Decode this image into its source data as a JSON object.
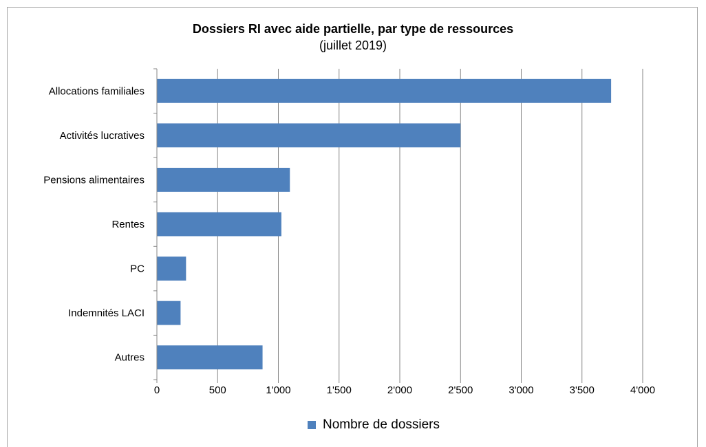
{
  "chart_data": {
    "type": "bar",
    "orientation": "horizontal",
    "title": "Dossiers RI avec aide partielle,  par type de ressources",
    "subtitle": "(juillet 2019)",
    "categories": [
      "Allocations familiales",
      "Activités lucratives",
      "Pensions alimentaires",
      "Rentes",
      "PC",
      "Indemnités LACI",
      "Autres"
    ],
    "series": [
      {
        "name": "Nombre de dossiers",
        "values": [
          3740,
          2500,
          1095,
          1025,
          240,
          195,
          870
        ],
        "color": "#4f81bd"
      }
    ],
    "xlim": [
      0,
      4000
    ],
    "xticks": [
      "0",
      "500",
      "1'000",
      "1'500",
      "2'000",
      "2'500",
      "3'000",
      "3'500",
      "4'000"
    ],
    "grid": true,
    "legend_position": "bottom"
  }
}
